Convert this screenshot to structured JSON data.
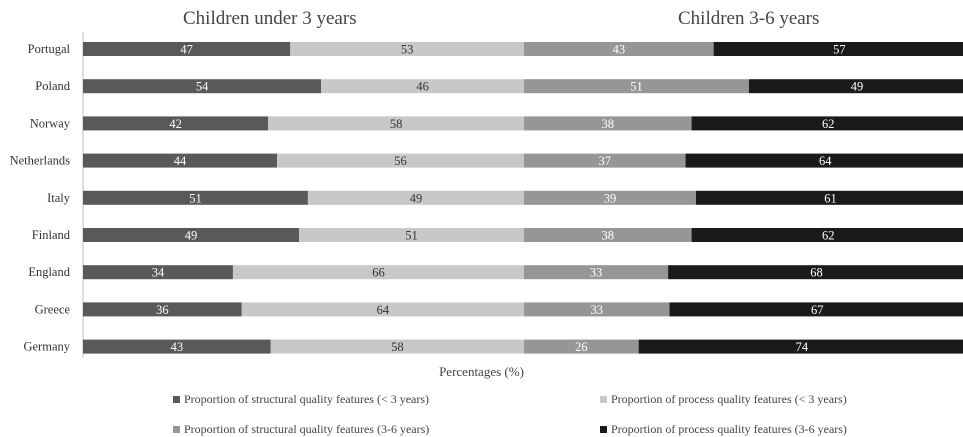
{
  "chart_data": {
    "type": "bar",
    "orientation": "horizontal",
    "stacked": true,
    "panels": [
      {
        "title": "Children under 3 years",
        "series": [
          {
            "name": "Proportion of structural quality features (< 3 years)",
            "color": "#595959",
            "values": [
              47,
              54,
              42,
              44,
              51,
              49,
              34,
              36,
              43
            ]
          },
          {
            "name": "Proportion of process quality features (< 3 years)",
            "color": "#c8c8c8",
            "values": [
              53,
              46,
              58,
              56,
              49,
              51,
              66,
              64,
              58
            ]
          }
        ]
      },
      {
        "title": "Children 3-6 years",
        "series": [
          {
            "name": "Proportion of structural quality features (3-6 years)",
            "color": "#969696",
            "values": [
              43,
              51,
              38,
              37,
              39,
              38,
              33,
              33,
              26
            ]
          },
          {
            "name": "Proportion of process quality features (3-6 years)",
            "color": "#1a1a1a",
            "values": [
              57,
              49,
              62,
              64,
              61,
              62,
              68,
              67,
              74
            ]
          }
        ]
      }
    ],
    "categories": [
      "Portugal",
      "Poland",
      "Norway",
      "Netherlands",
      "Italy",
      "Finland",
      "England",
      "Greece",
      "Germany"
    ],
    "xlabel": "Percentages (%)",
    "xlim": [
      0,
      100
    ],
    "legend_position": "bottom",
    "grid": false
  },
  "legend": [
    {
      "label": "Proportion of structural quality features (< 3 years)",
      "color": "#595959"
    },
    {
      "label": "Proportion of process quality features (< 3 years)",
      "color": "#c8c8c8"
    },
    {
      "label": "Proportion of structural quality features (3-6 years)",
      "color": "#969696"
    },
    {
      "label": "Proportion of process quality features (3-6 years)",
      "color": "#1a1a1a"
    }
  ]
}
